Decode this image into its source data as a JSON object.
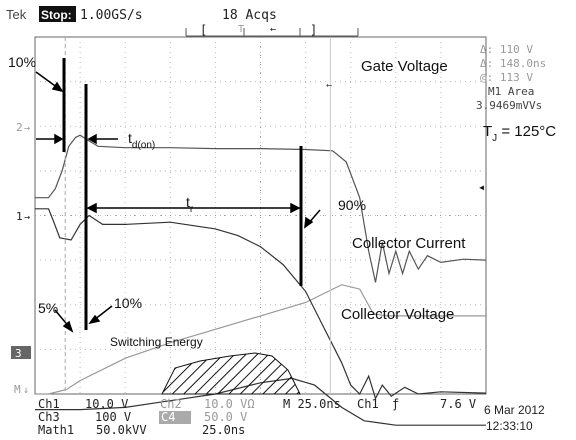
{
  "header": {
    "brand": "Tek",
    "run_state": "Stop:",
    "sample_rate": "1.00GS/s",
    "acqs": "18 Acqs"
  },
  "cursor_readout": {
    "delta_v": "Δ: 110 V",
    "delta_t": "Δ: 148.0ns",
    "at_v": "@: 113 V",
    "math_label": "M1 Area",
    "math_value": "3.9469mVVs"
  },
  "annotations": {
    "gate_voltage": "Gate Voltage",
    "tj": "T",
    "tj_sub": "J",
    "tj_rest": " = 125°C",
    "td_on": "t",
    "td_on_sub": "d(on)",
    "tr": "t",
    "tr_sub": "r",
    "pct10_top": "10%",
    "pct90": "90%",
    "collector_current": "Collector Current",
    "pct5": "5%",
    "pct10_bottom": "10%",
    "switching_energy": "Switching Energy",
    "collector_voltage": "Collector Voltage"
  },
  "channel_markers": {
    "ch2": "2",
    "ch1": "1",
    "ch3": "3",
    "math": "M"
  },
  "footer": {
    "ch1": "Ch1",
    "ch1_scale": "10.0 V",
    "ch2": "Ch2",
    "ch2_scale": "10.0 VΩ",
    "time_base": "M 25.0ns",
    "trig_src": "Ch1",
    "trig_slope": "ƒ",
    "trig_level": "7.6 V",
    "ch3": "Ch3",
    "ch3_scale": "100 V",
    "c4": "C4",
    "c4_scale": "50.0 V",
    "math1": "Math1",
    "math1_scale": "50.0kVV",
    "math1_time": "25.0ns",
    "date": "6 Mar 2012",
    "time": "12:33:10"
  },
  "chart_data": {
    "type": "line",
    "x_divisions": 10,
    "y_divisions": 8,
    "grid": true,
    "series": [
      {
        "name": "Gate Voltage",
        "color": "#555555",
        "points": [
          [
            0,
            0.4
          ],
          [
            0.3,
            0.4
          ],
          [
            0.45,
            0.6
          ],
          [
            0.6,
            1.0
          ],
          [
            0.75,
            1.55
          ],
          [
            0.9,
            1.75
          ],
          [
            1.0,
            1.8
          ],
          [
            1.15,
            1.7
          ],
          [
            1.4,
            1.55
          ],
          [
            2.0,
            1.52
          ],
          [
            3.0,
            1.52
          ],
          [
            4.0,
            1.5
          ],
          [
            5.0,
            1.5
          ],
          [
            6.0,
            1.48
          ],
          [
            6.6,
            1.45
          ],
          [
            6.9,
            1.2
          ],
          [
            7.2,
            0.4
          ],
          [
            7.4,
            -0.8
          ],
          [
            7.55,
            -1.5
          ],
          [
            7.7,
            -0.6
          ],
          [
            7.85,
            -1.3
          ],
          [
            8.0,
            -0.8
          ],
          [
            8.15,
            -1.3
          ],
          [
            8.3,
            -0.8
          ],
          [
            8.5,
            -1.2
          ],
          [
            8.7,
            -0.9
          ],
          [
            9.0,
            -1.05
          ],
          [
            9.5,
            -0.98
          ],
          [
            10.0,
            -1.0
          ]
        ]
      },
      {
        "name": "Collector Current",
        "color": "#999999",
        "points": [
          [
            0,
            -4.0
          ],
          [
            0.3,
            -4.0
          ],
          [
            0.7,
            -3.9
          ],
          [
            1.0,
            -3.7
          ],
          [
            2.0,
            -3.2
          ],
          [
            3.0,
            -2.85
          ],
          [
            4.0,
            -2.55
          ],
          [
            5.0,
            -2.25
          ],
          [
            6.0,
            -1.95
          ],
          [
            6.8,
            -1.55
          ],
          [
            7.2,
            -1.65
          ],
          [
            7.5,
            -2.2
          ],
          [
            7.8,
            -2.25
          ],
          [
            8.5,
            -2.25
          ],
          [
            10.0,
            -2.25
          ]
        ]
      },
      {
        "name": "Collector Voltage",
        "color": "#333333",
        "points": [
          [
            0,
            0.15
          ],
          [
            0.3,
            0.15
          ],
          [
            0.4,
            -0.1
          ],
          [
            0.55,
            -0.5
          ],
          [
            0.8,
            -0.55
          ],
          [
            1.0,
            -0.2
          ],
          [
            1.2,
            0.0
          ],
          [
            1.5,
            -0.2
          ],
          [
            2.0,
            -0.2
          ],
          [
            3.0,
            -0.15
          ],
          [
            4.0,
            -0.3
          ],
          [
            4.5,
            -0.45
          ],
          [
            5.0,
            -0.7
          ],
          [
            5.5,
            -1.1
          ],
          [
            6.0,
            -1.7
          ],
          [
            6.4,
            -2.5
          ],
          [
            6.8,
            -3.3
          ],
          [
            7.0,
            -3.8
          ],
          [
            7.2,
            -4.0
          ],
          [
            7.4,
            -3.6
          ],
          [
            7.55,
            -4.1
          ],
          [
            7.7,
            -3.8
          ],
          [
            7.9,
            -4.05
          ],
          [
            8.2,
            -3.85
          ],
          [
            8.5,
            -4.0
          ],
          [
            9.0,
            -3.95
          ],
          [
            10.0,
            -3.98
          ]
        ]
      },
      {
        "name": "Switching Energy",
        "color": "#333333",
        "points": [
          [
            0,
            -4.35
          ],
          [
            1.0,
            -4.35
          ],
          [
            2.0,
            -4.3
          ],
          [
            3.0,
            -4.15
          ],
          [
            4.0,
            -4.0
          ],
          [
            5.0,
            -3.75
          ],
          [
            5.7,
            -3.65
          ],
          [
            6.2,
            -3.8
          ],
          [
            6.8,
            -4.3
          ],
          [
            7.3,
            -4.6
          ],
          [
            8.0,
            -4.7
          ],
          [
            10.0,
            -4.7
          ]
        ]
      }
    ]
  }
}
